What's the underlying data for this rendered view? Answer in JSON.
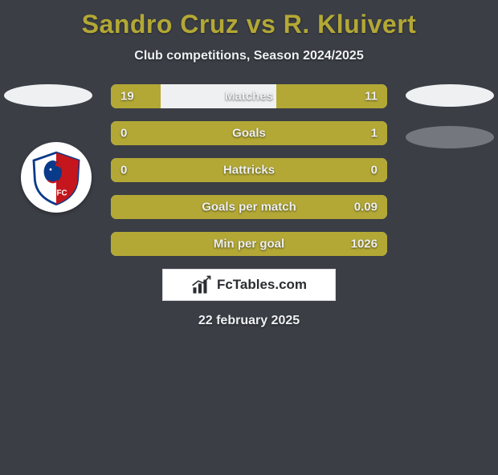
{
  "title": "Sandro Cruz vs R. Kluivert",
  "subtitle": "Club competitions, Season 2024/2025",
  "date": "22 february 2025",
  "footer_brand": "FcTables.com",
  "colors": {
    "background": "#3b3e45",
    "accent": "#b3a835",
    "track": "#eef0f2",
    "text_light": "#eef0f2",
    "ellipse_light": "#eef0f2",
    "ellipse_dark": "#74787e",
    "badge_bg": "#ffffff",
    "badge_primary": "#c4161c",
    "badge_secondary": "#0a3a8a"
  },
  "stats": [
    {
      "label": "Matches",
      "left_val": "19",
      "right_val": "11",
      "left_pct": 18,
      "right_pct": 40
    },
    {
      "label": "Goals",
      "left_val": "0",
      "right_val": "1",
      "left_pct": 18,
      "right_pct": 82
    },
    {
      "label": "Hattricks",
      "left_val": "0",
      "right_val": "0",
      "left_pct": 100,
      "right_pct": 0
    },
    {
      "label": "Goals per match",
      "left_val": "",
      "right_val": "0.09",
      "left_pct": 100,
      "right_pct": 0
    },
    {
      "label": "Min per goal",
      "left_val": "",
      "right_val": "1026",
      "left_pct": 100,
      "right_pct": 0
    }
  ]
}
